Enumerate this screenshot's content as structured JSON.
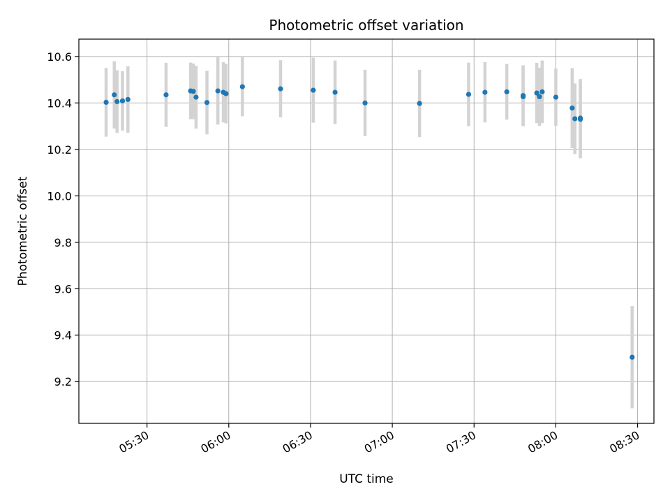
{
  "chart_data": {
    "type": "scatter",
    "title": "Photometric offset variation",
    "xlabel": "UTC time",
    "ylabel": "Photometric offset",
    "xlim": [
      "05:05",
      "08:36"
    ],
    "ylim": [
      9.02,
      10.675
    ],
    "x_ticks": [
      "05:30",
      "06:00",
      "06:30",
      "07:00",
      "07:30",
      "08:00",
      "08:30"
    ],
    "y_ticks": [
      "9.2",
      "9.4",
      "9.6",
      "9.8",
      "10.0",
      "10.2",
      "10.4",
      "10.6"
    ],
    "grid": true,
    "legend": "none",
    "colors": {
      "point": "#1f77b4",
      "errorbar": "#d3d3d3",
      "grid": "#b0b0b0"
    },
    "points": [
      {
        "x": "05:15",
        "y": 10.403,
        "err": 0.148
      },
      {
        "x": "05:18",
        "y": 10.435,
        "err": 0.145
      },
      {
        "x": "05:19",
        "y": 10.406,
        "err": 0.135
      },
      {
        "x": "05:21",
        "y": 10.409,
        "err": 0.128
      },
      {
        "x": "05:23",
        "y": 10.415,
        "err": 0.143
      },
      {
        "x": "05:37",
        "y": 10.435,
        "err": 0.138
      },
      {
        "x": "05:46",
        "y": 10.452,
        "err": 0.122
      },
      {
        "x": "05:47",
        "y": 10.45,
        "err": 0.12
      },
      {
        "x": "05:48",
        "y": 10.425,
        "err": 0.135
      },
      {
        "x": "05:52",
        "y": 10.402,
        "err": 0.137
      },
      {
        "x": "05:56",
        "y": 10.452,
        "err": 0.145
      },
      {
        "x": "05:58",
        "y": 10.446,
        "err": 0.13
      },
      {
        "x": "05:59",
        "y": 10.44,
        "err": 0.128
      },
      {
        "x": "06:05",
        "y": 10.47,
        "err": 0.127
      },
      {
        "x": "06:19",
        "y": 10.461,
        "err": 0.123
      },
      {
        "x": "06:31",
        "y": 10.455,
        "err": 0.14
      },
      {
        "x": "06:39",
        "y": 10.446,
        "err": 0.137
      },
      {
        "x": "06:50",
        "y": 10.4,
        "err": 0.143
      },
      {
        "x": "07:10",
        "y": 10.398,
        "err": 0.145
      },
      {
        "x": "07:28",
        "y": 10.437,
        "err": 0.137
      },
      {
        "x": "07:34",
        "y": 10.446,
        "err": 0.13
      },
      {
        "x": "07:42",
        "y": 10.448,
        "err": 0.12
      },
      {
        "x": "07:48",
        "y": 10.432,
        "err": 0.13
      },
      {
        "x": "07:48",
        "y": 10.427,
        "err": 0.127
      },
      {
        "x": "07:53",
        "y": 10.443,
        "err": 0.13
      },
      {
        "x": "07:54",
        "y": 10.427,
        "err": 0.125
      },
      {
        "x": "07:55",
        "y": 10.448,
        "err": 0.135
      },
      {
        "x": "08:00",
        "y": 10.425,
        "err": 0.123
      },
      {
        "x": "08:06",
        "y": 10.378,
        "err": 0.172
      },
      {
        "x": "08:07",
        "y": 10.332,
        "err": 0.152
      },
      {
        "x": "08:09",
        "y": 10.335,
        "err": 0.168
      },
      {
        "x": "08:09",
        "y": 10.33,
        "err": 0.168
      },
      {
        "x": "08:28",
        "y": 9.305,
        "err": 0.22
      }
    ]
  }
}
